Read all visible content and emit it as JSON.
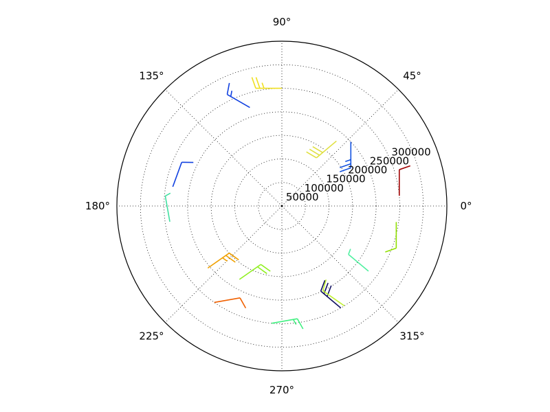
{
  "chart_data": {
    "type": "polar-barbs",
    "title": "",
    "angle_ticks": [
      {
        "deg": 0,
        "label": "0°"
      },
      {
        "deg": 45,
        "label": "45°"
      },
      {
        "deg": 90,
        "label": "90°"
      },
      {
        "deg": 135,
        "label": "135°"
      },
      {
        "deg": 180,
        "label": "180°"
      },
      {
        "deg": 225,
        "label": "225°"
      },
      {
        "deg": 270,
        "label": "270°"
      },
      {
        "deg": 315,
        "label": "315°"
      }
    ],
    "radial_ticks": [
      {
        "value": 50000,
        "label": "50000"
      },
      {
        "value": 100000,
        "label": "100000"
      },
      {
        "value": 150000,
        "label": "150000"
      },
      {
        "value": 200000,
        "label": "200000"
      },
      {
        "value": 250000,
        "label": "250000"
      },
      {
        "value": 300000,
        "label": "300000"
      }
    ],
    "rlim": [
      0,
      350000
    ],
    "grid": true,
    "colormap": "jet",
    "barbs": [
      {
        "theta": 90,
        "r": 250000,
        "dir": 180,
        "color": "#f0e020",
        "barbs": [
          1,
          1,
          0.5
        ]
      },
      {
        "theta": 108,
        "r": 220000,
        "dir": 150,
        "color": "#1040e0",
        "barbs": [
          1,
          0.5
        ]
      },
      {
        "theta": 43,
        "r": 200000,
        "dir": 270,
        "color": "#1050e0",
        "barbs": [
          1,
          1,
          0.5
        ]
      },
      {
        "theta": 50,
        "r": 180000,
        "dir": 220,
        "color": "#e0e040",
        "barbs": [
          1,
          1,
          1
        ]
      },
      {
        "theta": 5,
        "r": 250000,
        "dir": 90,
        "color": "#a00000",
        "barbs": [
          1
        ]
      },
      {
        "theta": 352,
        "r": 245000,
        "dir": 270,
        "color": "#90e000",
        "barbs": [
          1
        ]
      },
      {
        "theta": 170,
        "r": 235000,
        "dir": 70,
        "color": "#1040e0",
        "barbs": [
          1
        ]
      },
      {
        "theta": 188,
        "r": 240000,
        "dir": 100,
        "color": "#40e0a0",
        "barbs": [
          0.5
        ]
      },
      {
        "theta": 220,
        "r": 205000,
        "dir": 35,
        "color": "#f0a000",
        "barbs": [
          1,
          1,
          0.5
        ]
      },
      {
        "theta": 235,
        "r": 250000,
        "dir": 10,
        "color": "#f06000",
        "barbs": [
          1
        ]
      },
      {
        "theta": 240,
        "r": 180000,
        "dir": 35,
        "color": "#90f020",
        "barbs": [
          1,
          1
        ]
      },
      {
        "theta": 265,
        "r": 250000,
        "dir": 10,
        "color": "#40f080",
        "barbs": [
          1,
          0.5
        ]
      },
      {
        "theta": 300,
        "r": 250000,
        "dir": 140,
        "color": "#101060",
        "barbs": [
          1,
          1,
          1
        ]
      },
      {
        "theta": 302,
        "r": 250000,
        "dir": 145,
        "color": "#c0f030",
        "barbs": [
          1
        ]
      },
      {
        "theta": 323,
        "r": 230000,
        "dir": 140,
        "color": "#50f0a0",
        "barbs": [
          0.5
        ]
      }
    ]
  }
}
